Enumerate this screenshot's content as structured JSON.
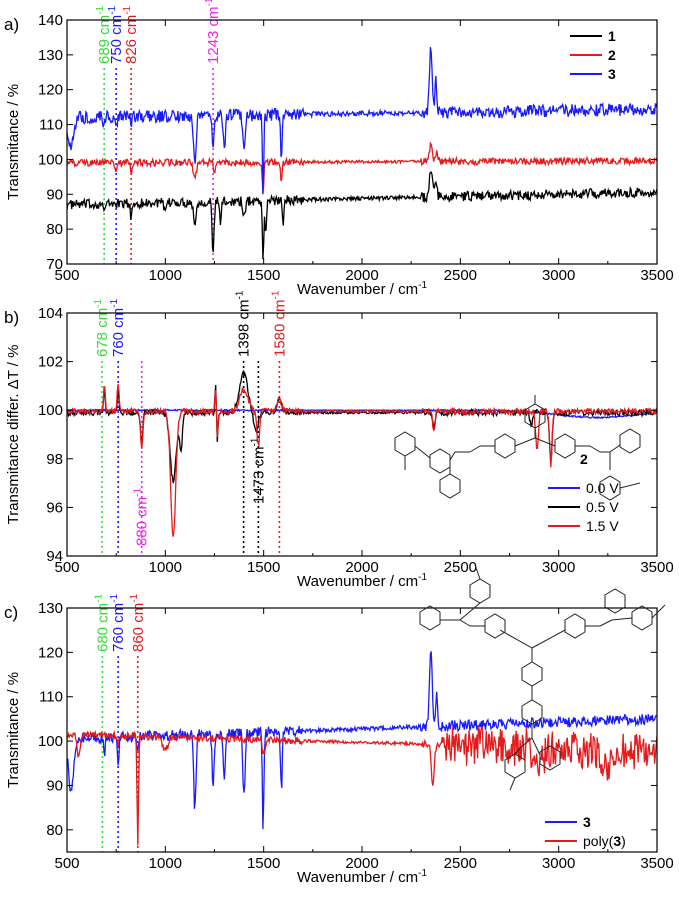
{
  "chart_data": [
    {
      "panel": "a)",
      "type": "line",
      "xlabel": "Wavenumber / cm",
      "xlabel_sup": "-1",
      "ylabel": "Transmitance / %",
      "xlim": [
        500,
        3500
      ],
      "ylim": [
        70,
        140
      ],
      "xticks": [
        "500",
        "1000",
        "1500",
        "2000",
        "2500",
        "3000",
        "3500"
      ],
      "yticks": [
        "70",
        "80",
        "90",
        "100",
        "110",
        "120",
        "130",
        "140"
      ],
      "legend_position": "top-right",
      "series": [
        {
          "name": "1",
          "color": "#000000",
          "baseline": 87,
          "noise": 1.4,
          "trend": 0.0012,
          "peaks": [
            [
              689,
              2.5,
              6
            ],
            [
              826,
              5,
              5
            ],
            [
              1000,
              3,
              10
            ],
            [
              1150,
              6,
              10
            ],
            [
              1243,
              15,
              7
            ],
            [
              1280,
              6,
              6
            ],
            [
              1400,
              5,
              8
            ],
            [
              1497,
              17,
              5
            ],
            [
              1510,
              9,
              6
            ],
            [
              1600,
              6,
              6
            ]
          ],
          "spikes": [
            [
              2350,
              7,
              12
            ],
            [
              2375,
              4,
              8
            ]
          ]
        },
        {
          "name": "2",
          "color": "#e41a1c",
          "baseline": 99,
          "noise": 1.0,
          "trend": 0.0002,
          "peaks": [
            [
              750,
              2,
              6
            ],
            [
              826,
              3,
              5
            ],
            [
              1150,
              5,
              10
            ],
            [
              1250,
              3,
              6
            ],
            [
              1497,
              10,
              5
            ],
            [
              1590,
              6,
              6
            ]
          ],
          "spikes": [
            [
              2350,
              5,
              10
            ],
            [
              2380,
              3,
              8
            ]
          ]
        },
        {
          "name": "3",
          "color": "#1a1aff",
          "baseline": 112,
          "noise": 1.8,
          "trend": 0.0008,
          "peaks": [
            [
              520,
              9,
              18
            ],
            [
              689,
              3,
              6
            ],
            [
              750,
              4,
              6
            ],
            [
              826,
              3,
              5
            ],
            [
              1150,
              13,
              10
            ],
            [
              1243,
              10,
              7
            ],
            [
              1300,
              9,
              8
            ],
            [
              1400,
              10,
              8
            ],
            [
              1497,
              23,
              5
            ],
            [
              1590,
              12,
              6
            ]
          ],
          "spikes": [
            [
              2350,
              18,
              10
            ],
            [
              2375,
              10,
              6
            ]
          ]
        }
      ],
      "annotations": [
        {
          "text": "689 cm",
          "sup": "-1",
          "x": 689,
          "color": "#33dd33"
        },
        {
          "text": "750 cm",
          "sup": "-1",
          "x": 750,
          "color": "#1a1aff"
        },
        {
          "text": "826 cm",
          "sup": "-1",
          "x": 826,
          "color": "#e41a1c"
        },
        {
          "text": "1243 cm",
          "sup": "-1",
          "x": 1243,
          "color": "#ee22ee"
        }
      ]
    },
    {
      "panel": "b)",
      "type": "line",
      "xlabel": "Wavenumber / cm",
      "xlabel_sup": "-1",
      "ylabel": "Transmitance differ. ΔT / %",
      "xlim": [
        500,
        3500
      ],
      "ylim": [
        94,
        104
      ],
      "xticks": [
        "500",
        "1000",
        "1500",
        "2000",
        "2500",
        "3000",
        "3500"
      ],
      "yticks": [
        "94",
        "96",
        "98",
        "100",
        "102",
        "104"
      ],
      "legend_position": "bottom-right",
      "legend_title": "2",
      "series": [
        {
          "name": "0.0 V",
          "color": "#1a1aff",
          "baseline": 100,
          "noise": 0.03,
          "trend": 0,
          "peaks": [
            [
              3200,
              0.3,
              300
            ]
          ],
          "spikes": []
        },
        {
          "name": "0.5 V",
          "color": "#000000",
          "baseline": 99.9,
          "noise": 0.12,
          "trend": 0,
          "peaks": [
            [
              690,
              -1,
              6
            ],
            [
              880,
              1.2,
              8
            ],
            [
              1040,
              2.8,
              22
            ],
            [
              1080,
              1.5,
              10
            ],
            [
              1265,
              1.2,
              4
            ],
            [
              1460,
              0.8,
              15
            ],
            [
              2365,
              0.6,
              8
            ],
            [
              2860,
              0.5,
              10
            ],
            [
              2960,
              2.0,
              9
            ]
          ],
          "spikes": [
            [
              1255,
              1.2,
              4
            ],
            [
              1398,
              1.6,
              30
            ],
            [
              1580,
              0.6,
              15
            ],
            [
              760,
              1.0,
              6
            ]
          ]
        },
        {
          "name": "1.5 V",
          "color": "#e41a1c",
          "baseline": 99.95,
          "noise": 0.12,
          "trend": 0,
          "peaks": [
            [
              690,
              -1.2,
              6
            ],
            [
              880,
              1.5,
              8
            ],
            [
              1040,
              5.2,
              18
            ],
            [
              1265,
              1.2,
              4
            ],
            [
              1473,
              1.4,
              10
            ],
            [
              2365,
              0.9,
              8
            ],
            [
              2890,
              1.6,
              10
            ],
            [
              2960,
              2.2,
              9
            ]
          ],
          "spikes": [
            [
              1255,
              1.0,
              4
            ],
            [
              1398,
              0.9,
              30
            ],
            [
              1580,
              0.5,
              15
            ],
            [
              760,
              1.2,
              6
            ]
          ]
        }
      ],
      "annotations": [
        {
          "text": "678 cm",
          "sup": "-1",
          "x": 678,
          "color": "#33dd33"
        },
        {
          "text": "760 cm",
          "sup": "-1",
          "x": 760,
          "color": "#1a1aff"
        },
        {
          "text": "880 cm",
          "sup": "-1",
          "x": 880,
          "color": "#ee22ee"
        },
        {
          "text": "1398 cm",
          "sup": "-1",
          "x": 1398,
          "color": "#000000"
        },
        {
          "text": "1473 cm",
          "sup": "-1",
          "x": 1473,
          "color": "#000000"
        },
        {
          "text": "1580 cm",
          "sup": "-1",
          "x": 1580,
          "color": "#e41a1c"
        }
      ]
    },
    {
      "panel": "c)",
      "type": "line",
      "xlabel": "Wavenumber / cm",
      "xlabel_sup": "-1",
      "ylabel": "Transmitance / %",
      "xlim": [
        500,
        3500
      ],
      "ylim": [
        75,
        130
      ],
      "xticks": [
        "500",
        "1000",
        "1500",
        "2000",
        "2500",
        "3000",
        "3500"
      ],
      "yticks": [
        "80",
        "90",
        "100",
        "110",
        "120",
        "130"
      ],
      "legend_position": "bottom-right",
      "series": [
        {
          "name": "3",
          "color": "#1a1aff",
          "baseline": 100.5,
          "noise": 1.2,
          "trend": 0.0015,
          "peaks": [
            [
              520,
              12,
              18
            ],
            [
              690,
              4,
              6
            ],
            [
              760,
              7,
              6
            ],
            [
              860,
              4,
              5
            ],
            [
              1150,
              17,
              8
            ],
            [
              1243,
              12,
              7
            ],
            [
              1300,
              11,
              7
            ],
            [
              1400,
              14,
              8
            ],
            [
              1497,
              23,
              5
            ],
            [
              1590,
              13,
              6
            ]
          ],
          "spikes": [
            [
              2350,
              17,
              10
            ],
            [
              2380,
              8,
              6
            ]
          ]
        },
        {
          "name": "poly(3)",
          "color": "#e41a1c",
          "baseline": 101.5,
          "noise": 0.8,
          "trend": -0.0012,
          "peaks": [
            [
              560,
              5,
              10
            ],
            [
              760,
              2,
              6
            ],
            [
              860,
              25,
              5
            ],
            [
              1000,
              3,
              20
            ],
            [
              1500,
              3,
              10
            ],
            [
              2360,
              10,
              10
            ],
            [
              2900,
              4,
              40
            ],
            [
              3250,
              5,
              40
            ]
          ],
          "spikes": []
        }
      ],
      "annotations": [
        {
          "text": "680 cm",
          "sup": "-1",
          "x": 680,
          "color": "#33dd33"
        },
        {
          "text": "760 cm",
          "sup": "-1",
          "x": 760,
          "color": "#1a1aff"
        },
        {
          "text": "860 cm",
          "sup": "-1",
          "x": 860,
          "color": "#e41a1c"
        }
      ]
    }
  ]
}
